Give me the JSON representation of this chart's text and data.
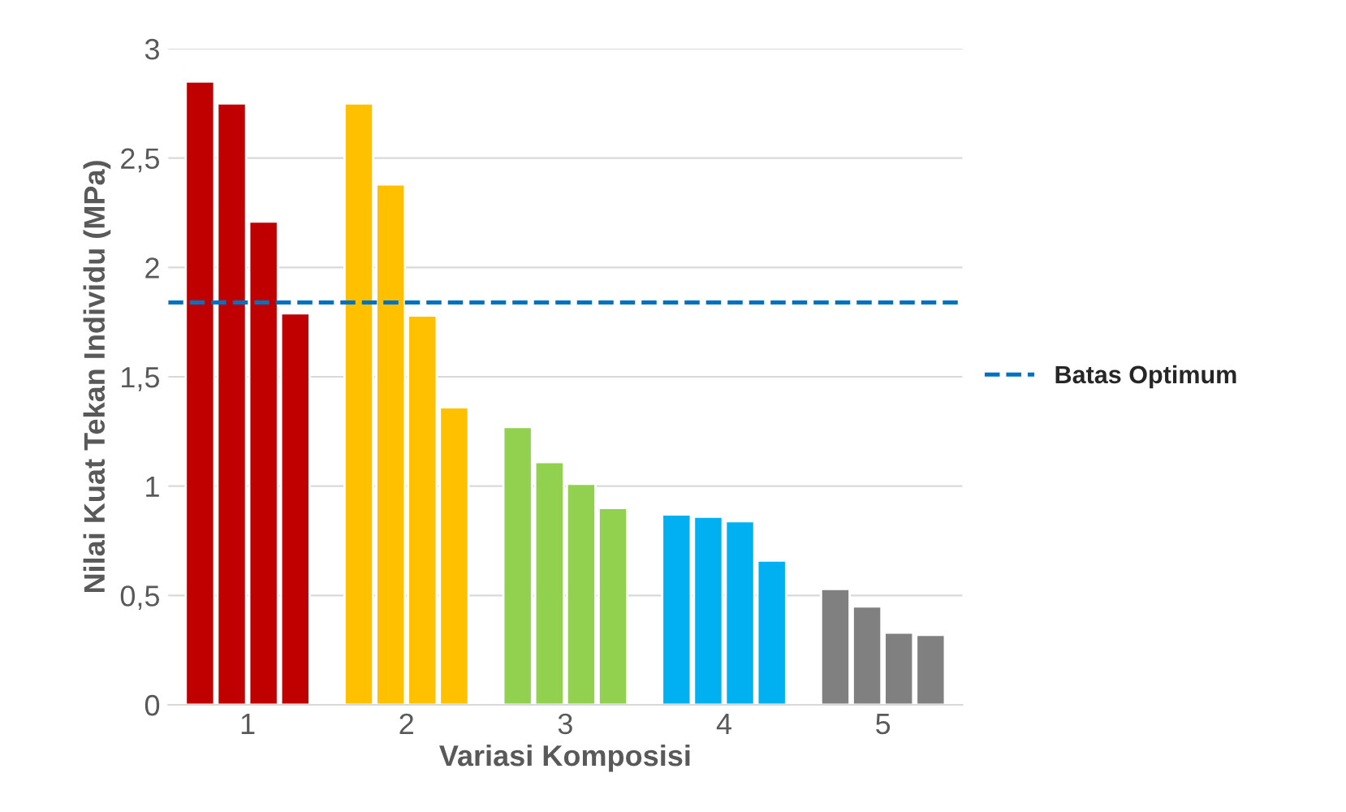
{
  "chart_data": {
    "type": "bar",
    "xlabel": "Variasi Komposisi",
    "ylabel": "Nilai Kuat Tekan Individu (MPa)",
    "categories": [
      "1",
      "2",
      "3",
      "4",
      "5"
    ],
    "series": [
      {
        "colors": [
          "#c00000",
          "#ffc000",
          "#92d050",
          "#00b0f0",
          "#808080"
        ],
        "values": [
          2.85,
          2.75,
          1.27,
          0.87,
          0.53
        ]
      },
      {
        "colors": [
          "#c00000",
          "#ffc000",
          "#92d050",
          "#00b0f0",
          "#808080"
        ],
        "values": [
          2.75,
          2.38,
          1.11,
          0.86,
          0.45
        ]
      },
      {
        "colors": [
          "#c00000",
          "#ffc000",
          "#92d050",
          "#00b0f0",
          "#808080"
        ],
        "values": [
          2.21,
          1.78,
          1.01,
          0.84,
          0.33
        ]
      },
      {
        "colors": [
          "#c00000",
          "#ffc000",
          "#92d050",
          "#00b0f0",
          "#808080"
        ],
        "values": [
          1.79,
          1.36,
          0.9,
          0.66,
          0.32
        ]
      }
    ],
    "ylim": [
      0,
      3
    ],
    "yticks": [
      0,
      {
        "value": 0.5,
        "label": "0,5"
      },
      1,
      {
        "value": 1.5,
        "label": "1,5"
      },
      2,
      {
        "value": 2.5,
        "label": "2,5"
      },
      3
    ],
    "ref_lines": [
      {
        "axis": "y",
        "value": 1.84,
        "label": "Batas Optimum",
        "color": "#0070c0",
        "line_style": "dashed"
      }
    ],
    "grid": "y",
    "legend": "right"
  }
}
